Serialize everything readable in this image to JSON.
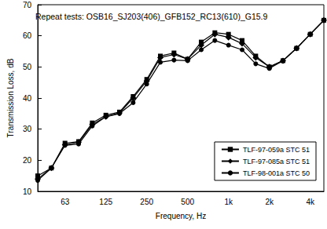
{
  "chart_data": {
    "type": "line",
    "title": "Repeat tests: OSB16_SJ203(406)_GFB152_RC13(610)_G15.9",
    "x_label": "Frequency, Hz",
    "y_label": "Transmission Loss, dB",
    "categories": [
      null,
      null,
      "63",
      null,
      null,
      "125",
      null,
      null,
      "250",
      null,
      null,
      "500",
      null,
      null,
      "1k",
      null,
      null,
      "2k",
      null,
      null,
      "4k",
      null
    ],
    "series": [
      {
        "name": "TLF-97-059a STC 51",
        "color": "#000000",
        "marker": "square",
        "values": [
          15,
          17.5,
          25.5,
          26,
          32,
          34.5,
          35.5,
          40.5,
          46,
          53.5,
          54.5,
          52.5,
          58,
          61,
          60.5,
          58.5,
          53.5,
          50,
          52,
          56,
          60.5,
          65
        ]
      },
      {
        "name": "TLF-97-085a STC 51",
        "color": "#000000",
        "marker": "diamond",
        "values": [
          14,
          17.5,
          25,
          25.8,
          31.5,
          34,
          35.2,
          40,
          45.5,
          53,
          54,
          52.5,
          57,
          60.5,
          59.5,
          57.5,
          53,
          50,
          52,
          56,
          60.5,
          65
        ]
      },
      {
        "name": "TLF-98-001a STC 50",
        "color": "#000000",
        "marker": "circle",
        "values": [
          13.5,
          17.5,
          24.8,
          25.2,
          31,
          34,
          35,
          38.5,
          44.5,
          51.5,
          52.2,
          52,
          55.5,
          58.5,
          57,
          55.5,
          51,
          49.5,
          52,
          56,
          60.5,
          65
        ]
      }
    ],
    "ylim": [
      10,
      70
    ],
    "yticks": [
      10,
      20,
      30,
      40,
      50,
      60,
      70
    ],
    "grid": false,
    "legend": "bottom-right"
  }
}
